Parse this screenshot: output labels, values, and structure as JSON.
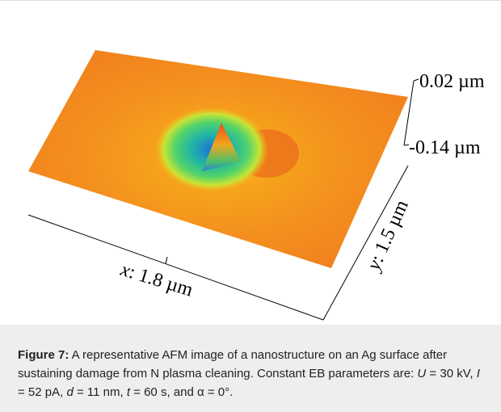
{
  "figure": {
    "z_top": "0.02 µm",
    "z_bottom": "-0.14 µm",
    "x_axis": {
      "variable": "x",
      "text": ": 1.8 µm"
    },
    "y_axis": {
      "variable": "y",
      "text": ": 1.5 µm"
    },
    "caption": {
      "label": "Figure 7:",
      "parts": [
        " A representative AFM image of a nanostructure on an Ag surface after sustaining damage from N plasma cleaning. Constant EB parameters are: ",
        "U",
        " = 30 kV, ",
        "I",
        " = 52 pA, ",
        "d",
        " = 11 nm, ",
        "t",
        " = 60 s, and α = 0°."
      ]
    }
  }
}
